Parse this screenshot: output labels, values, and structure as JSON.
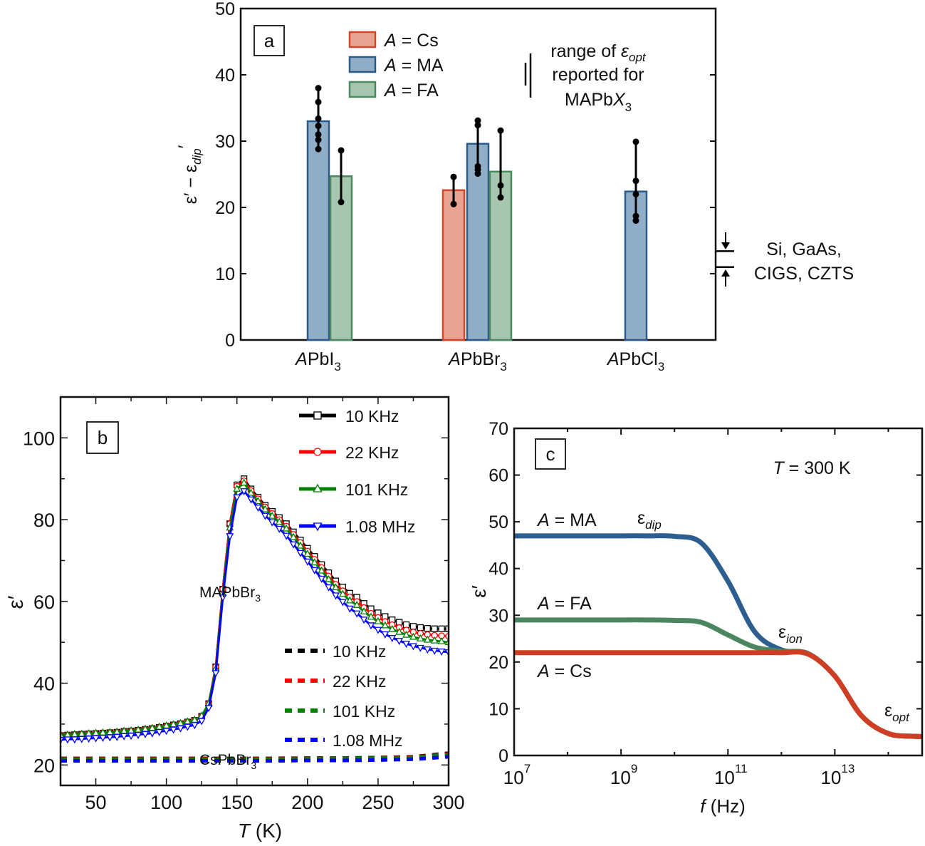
{
  "chart_data": [
    {
      "panel": "a",
      "type": "bar",
      "ylabel": {
        "main": "ε′ − ε",
        "sub": "dip",
        "prime": "′"
      },
      "ylim": [
        0,
        50
      ],
      "yticks": [
        0,
        10,
        20,
        30,
        40,
        50
      ],
      "categories": [
        {
          "var": "A",
          "rest": "PbI",
          "sub": "3"
        },
        {
          "var": "A",
          "rest": "PbBr",
          "sub": "3"
        },
        {
          "var": "A",
          "rest": "PbCl",
          "sub": "3"
        }
      ],
      "series": [
        {
          "key": "Cs",
          "legend": {
            "var": "A",
            "rest": " = Cs"
          },
          "fill": "#e8a393",
          "stroke": "#d4462a"
        },
        {
          "key": "MA",
          "legend": {
            "var": "A",
            "rest": " = MA"
          },
          "fill": "#91aec9",
          "stroke": "#2b5a8b"
        },
        {
          "key": "FA",
          "legend": {
            "var": "A",
            "rest": " = FA"
          },
          "fill": "#a7c6b0",
          "stroke": "#4a8a5d"
        }
      ],
      "bars": [
        {
          "category": 0,
          "series": "MA",
          "value": 33.0,
          "points": [
            38.0,
            35.9,
            33.4,
            32.3,
            31.0,
            30.2,
            28.8
          ]
        },
        {
          "category": 0,
          "series": "FA",
          "value": 24.7,
          "points": [
            28.6,
            20.8
          ]
        },
        {
          "category": 1,
          "series": "Cs",
          "value": 22.6,
          "points": [
            24.6,
            20.5
          ]
        },
        {
          "category": 1,
          "series": "MA",
          "value": 29.6,
          "points": [
            33.1,
            32.4,
            26.2,
            25.7,
            25.1
          ]
        },
        {
          "category": 1,
          "series": "FA",
          "value": 25.4,
          "points": [
            31.6,
            23.3,
            21.5
          ]
        },
        {
          "category": 2,
          "series": "MA",
          "value": 22.4,
          "points": [
            29.9,
            24.0,
            22.0,
            18.7,
            18.0
          ]
        }
      ],
      "panel_label": "a",
      "opt_range": {
        "line1": "range of ",
        "eps": "ε",
        "eps_sub": "opt",
        "line2": "reported for",
        "line3_main": "MAPb",
        "line3_var": "X",
        "line3_sub": "3",
        "range": [
          36.5,
          42
        ]
      },
      "side_range": {
        "line1": "Si, GaAs,",
        "line2": "CIGS, CZTS",
        "range": [
          11,
          13.4
        ]
      }
    },
    {
      "panel": "b",
      "type": "line",
      "panel_label": "b",
      "xlabel": {
        "var": "T",
        "rest": " (K)"
      },
      "ylabel": "ε′",
      "xlim": [
        25,
        300
      ],
      "ylim": [
        15,
        110
      ],
      "xticks": [
        50,
        100,
        150,
        200,
        250,
        300
      ],
      "yticks": [
        20,
        40,
        60,
        80,
        100
      ],
      "annotations": {
        "mapbbr3": {
          "main": "MAPbBr",
          "sub": "3"
        },
        "cspbbr3": {
          "main": "CsPbBr",
          "sub": "3"
        }
      },
      "T": [
        25,
        30,
        35,
        40,
        45,
        50,
        55,
        60,
        65,
        70,
        75,
        80,
        85,
        90,
        95,
        100,
        105,
        110,
        115,
        120,
        125,
        130,
        135,
        140,
        145,
        150,
        155,
        160,
        165,
        170,
        175,
        180,
        185,
        190,
        195,
        200,
        205,
        210,
        215,
        220,
        225,
        230,
        235,
        240,
        245,
        250,
        255,
        260,
        265,
        270,
        275,
        280,
        285,
        290,
        295,
        300
      ],
      "series": [
        {
          "name": "10 KHz",
          "material": "MAPbBr3",
          "color": "#000000",
          "marker": "square",
          "values": [
            27.2,
            27.3,
            27.4,
            27.5,
            27.6,
            27.7,
            27.8,
            27.9,
            28.0,
            28.2,
            28.3,
            28.5,
            28.7,
            28.9,
            29.2,
            29.5,
            29.8,
            30.1,
            30.5,
            30.9,
            31.9,
            35,
            44,
            63,
            79,
            88.5,
            90,
            87.5,
            85.5,
            83.5,
            82,
            80.5,
            79,
            77,
            75,
            73,
            71,
            69,
            67,
            65,
            63.5,
            62,
            61,
            59.5,
            58.2,
            57.2,
            56.3,
            55.5,
            54.9,
            54.3,
            53.9,
            53.6,
            53.4,
            53.3,
            53.3,
            53.3
          ]
        },
        {
          "name": "22 KHz",
          "material": "MAPbBr3",
          "color": "#ff0000",
          "marker": "circle",
          "values": [
            27.2,
            27.3,
            27.4,
            27.5,
            27.6,
            27.7,
            27.8,
            27.9,
            28.0,
            28.2,
            28.3,
            28.5,
            28.7,
            28.9,
            29.2,
            29.5,
            29.8,
            30.1,
            30.5,
            30.9,
            31.9,
            35,
            44,
            63,
            79,
            88.2,
            89.5,
            87.1,
            85.1,
            83.1,
            81.5,
            80,
            78.4,
            76.4,
            74.4,
            72.3,
            70.3,
            68.3,
            66.2,
            64.2,
            62.6,
            61.1,
            60,
            58.5,
            57.1,
            56.1,
            55.1,
            54.3,
            53.6,
            53,
            52.5,
            52.2,
            51.9,
            51.7,
            51.6,
            51.5
          ]
        },
        {
          "name": "101 KHz",
          "material": "MAPbBr3",
          "color": "#008000",
          "marker": "triangle-up",
          "values": [
            27.3,
            27.4,
            27.5,
            27.6,
            27.7,
            27.8,
            27.9,
            28.0,
            28.1,
            28.3,
            28.4,
            28.6,
            28.8,
            29.0,
            29.3,
            29.6,
            29.9,
            30.2,
            30.6,
            31.0,
            32.0,
            35,
            43.5,
            62,
            78,
            87.5,
            89,
            86.5,
            84.5,
            82.5,
            80.9,
            79.4,
            77.8,
            75.7,
            73.6,
            71.6,
            69.5,
            67.5,
            65.4,
            63.4,
            61.8,
            60.2,
            59.1,
            57.5,
            56.2,
            55.1,
            54.1,
            53.2,
            52.5,
            51.8,
            51.3,
            50.9,
            50.6,
            50.4,
            50.2,
            50.0
          ]
        },
        {
          "name": "1.08 MHz",
          "material": "MAPbBr3",
          "color": "#0000ff",
          "marker": "triangle-down",
          "values": [
            26.2,
            26.3,
            26.3,
            26.4,
            26.5,
            26.6,
            26.7,
            26.8,
            26.9,
            27.1,
            27.2,
            27.4,
            27.6,
            27.8,
            28.1,
            28.4,
            28.7,
            29,
            29.4,
            29.8,
            30.8,
            34,
            42.5,
            61,
            76,
            85.5,
            87,
            85,
            83,
            81,
            79.4,
            77.8,
            76.1,
            74,
            71.9,
            69.8,
            67.7,
            65.6,
            63.5,
            61.5,
            59.9,
            58.3,
            57.1,
            55.6,
            54.2,
            53.1,
            52,
            51.1,
            50.4,
            49.7,
            49.1,
            48.7,
            48.3,
            48,
            47.8,
            47.6
          ]
        }
      ],
      "cs_T": [
        25,
        50,
        75,
        100,
        125,
        150,
        175,
        200,
        225,
        250,
        275,
        300
      ],
      "cs_series": [
        {
          "name": "10 KHz",
          "material": "CsPbBr3",
          "color": "#000000",
          "values": [
            21.6,
            21.6,
            21.6,
            21.6,
            21.6,
            21.6,
            21.6,
            21.7,
            21.7,
            21.8,
            22.0,
            22.9
          ]
        },
        {
          "name": "22 KHz",
          "material": "CsPbBr3",
          "color": "#ff0000",
          "values": [
            21.5,
            21.5,
            21.5,
            21.5,
            21.5,
            21.5,
            21.5,
            21.6,
            21.6,
            21.7,
            21.9,
            22.7
          ]
        },
        {
          "name": "101 KHz",
          "material": "CsPbBr3",
          "color": "#008000",
          "values": [
            21.4,
            21.4,
            21.4,
            21.4,
            21.4,
            21.4,
            21.4,
            21.5,
            21.5,
            21.6,
            21.8,
            22.5
          ]
        },
        {
          "name": "1.08 MHz",
          "material": "CsPbBr3",
          "color": "#0000ff",
          "values": [
            21.0,
            21.0,
            21.0,
            21.0,
            21.0,
            21.0,
            21.0,
            21.1,
            21.1,
            21.2,
            21.4,
            22.0
          ]
        }
      ]
    },
    {
      "panel": "c",
      "type": "line",
      "panel_label": "c",
      "xscale": "log",
      "xlabel": {
        "var": "f",
        "rest": " (Hz)"
      },
      "ylabel": "ε′",
      "xlim": [
        10000000.0,
        430000000000000.0
      ],
      "ylim": [
        0,
        70
      ],
      "xticks": [
        {
          "base": "10",
          "exp": "7",
          "value": 10000000.0
        },
        {
          "base": "10",
          "exp": "9",
          "value": 1000000000.0
        },
        {
          "base": "10",
          "exp": "11",
          "value": 100000000000.0
        },
        {
          "base": "10",
          "exp": "13",
          "value": 10000000000000.0
        }
      ],
      "yticks": [
        0,
        10,
        20,
        30,
        40,
        50,
        60,
        70
      ],
      "condition": {
        "var": "T",
        "rest": " = 300 K"
      },
      "x": [
        10000000.0,
        31600000.0,
        100000000.0,
        316000000.0,
        1000000000.0,
        3160000000.0,
        10000000000.0,
        31600000000.0,
        100000000000.0,
        316000000000.0,
        1000000000000.0,
        3160000000000.0,
        10000000000000.0,
        31600000000000.0,
        100000000000000.0,
        316000000000000.0
      ],
      "series": [
        {
          "key": "MA",
          "label": {
            "var": "A",
            "rest": " = MA"
          },
          "color": "#2c5f8f",
          "values": [
            47,
            47,
            47,
            47,
            47,
            47,
            46.9,
            45.5,
            37.3,
            26.5,
            22.6,
            21.8,
            17,
            8.5,
            4.7,
            4.1
          ]
        },
        {
          "key": "FA",
          "label": {
            "var": "A",
            "rest": " = FA"
          },
          "color": "#4b8660",
          "values": [
            29,
            29,
            29,
            29,
            29,
            29,
            28.9,
            28.5,
            25.8,
            23.2,
            22.3,
            21.8,
            17,
            8.5,
            4.7,
            4.1
          ]
        },
        {
          "key": "Cs",
          "label": {
            "var": "A",
            "rest": " = Cs"
          },
          "color": "#cf3d22",
          "values": [
            22,
            22,
            22,
            22,
            22,
            22,
            22,
            22,
            22,
            22,
            22,
            21.7,
            17,
            8.5,
            4.7,
            4.1
          ]
        }
      ],
      "annotations": {
        "dip": {
          "main": "ε",
          "sub": "dip"
        },
        "ion": {
          "main": "ε",
          "sub": "ion"
        },
        "opt": {
          "main": "ε",
          "sub": "opt"
        }
      }
    }
  ]
}
